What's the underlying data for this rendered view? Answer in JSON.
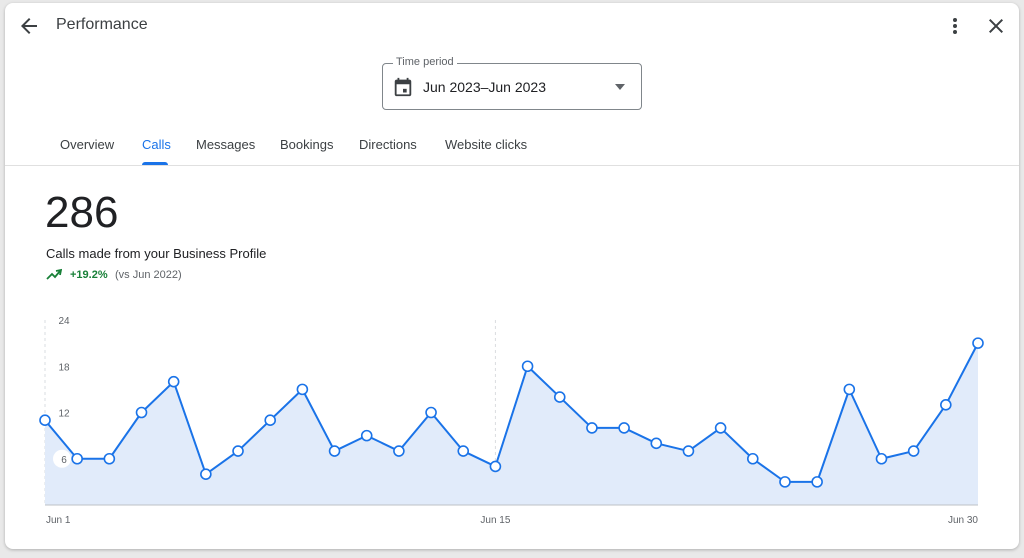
{
  "header": {
    "title": "Performance",
    "back_icon": "arrow-back-icon",
    "more_icon": "more-vert-icon",
    "close_icon": "close-icon"
  },
  "time_period": {
    "label": "Time period",
    "value": "Jun 2023–Jun 2023",
    "icon": "calendar-icon"
  },
  "tabs": [
    {
      "label": "Overview",
      "active": false
    },
    {
      "label": "Calls",
      "active": true
    },
    {
      "label": "Messages",
      "active": false
    },
    {
      "label": "Bookings",
      "active": false
    },
    {
      "label": "Directions",
      "active": false
    },
    {
      "label": "Website clicks",
      "active": false
    }
  ],
  "metric": {
    "value": "286",
    "description": "Calls made from your Business Profile",
    "change": "+19.2%",
    "comparison": "(vs Jun 2022)",
    "trend_icon": "trending-up-icon"
  },
  "colors": {
    "accent": "#1a73e8",
    "positive": "#188038",
    "area_fill": "#e1ebfa"
  },
  "chart_data": {
    "type": "area",
    "x": [
      "Jun 1",
      "Jun 2",
      "Jun 3",
      "Jun 4",
      "Jun 5",
      "Jun 6",
      "Jun 7",
      "Jun 8",
      "Jun 9",
      "Jun 10",
      "Jun 11",
      "Jun 12",
      "Jun 13",
      "Jun 14",
      "Jun 15",
      "Jun 16",
      "Jun 17",
      "Jun 18",
      "Jun 19",
      "Jun 20",
      "Jun 21",
      "Jun 22",
      "Jun 23",
      "Jun 24",
      "Jun 25",
      "Jun 26",
      "Jun 27",
      "Jun 28",
      "Jun 29",
      "Jun 30"
    ],
    "x_ticks": [
      "Jun 1",
      "Jun 15",
      "Jun 30"
    ],
    "values": [
      11,
      6,
      6,
      12,
      16,
      4,
      7,
      11,
      15,
      7,
      9,
      7,
      12,
      7,
      5,
      18,
      14,
      10,
      10,
      8,
      7,
      10,
      6,
      3,
      3,
      15,
      6,
      7,
      13,
      21
    ],
    "y_ticks": [
      24,
      18,
      12,
      6
    ],
    "ylim": [
      0,
      24
    ],
    "grid": "vertical dashed at Jun 1 and Jun 15",
    "legend": "none"
  }
}
